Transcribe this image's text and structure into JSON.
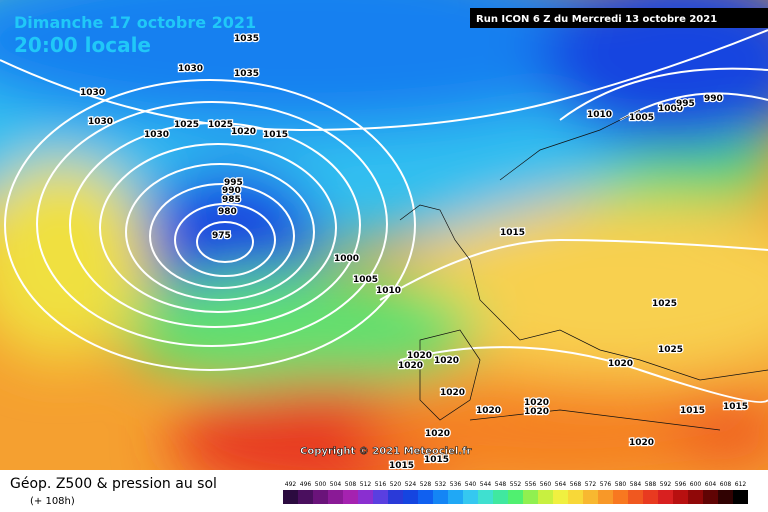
{
  "header": {
    "date": "Dimanche 17 octobre 2021",
    "time": "20:00 locale",
    "run": "Run ICON 6 Z du Mercredi 13 octobre 2021"
  },
  "isobar_labels": [
    "1035",
    "1030",
    "1035",
    "1030",
    "1030",
    "1030",
    "1025",
    "1025",
    "1020",
    "1015",
    "995",
    "990",
    "985",
    "980",
    "975",
    "1000",
    "1005",
    "1010",
    "1015",
    "1010",
    "1005",
    "1000",
    "995",
    "990",
    "1025",
    "1025",
    "1020",
    "1020",
    "1020",
    "1020",
    "1020",
    "1020",
    "1020",
    "1020",
    "1020",
    "1020",
    "1015",
    "1015",
    "1015",
    "1015"
  ],
  "copyright": "Copyright © 2021 Meteociel.fr",
  "footer": {
    "title": "Géop. Z500 & pression au sol",
    "lead": "(+ 108h)"
  },
  "scale": {
    "values": [
      492,
      496,
      500,
      504,
      508,
      512,
      516,
      520,
      524,
      528,
      532,
      536,
      540,
      544,
      548,
      552,
      556,
      560,
      564,
      568,
      572,
      576,
      580,
      584,
      588,
      592,
      596,
      600,
      604,
      608,
      612
    ],
    "colors": [
      "#2b0b3f",
      "#4a0f5e",
      "#6a137a",
      "#8a1a96",
      "#a522b0",
      "#8a2fd0",
      "#5a3fe0",
      "#2a3ad8",
      "#1545e0",
      "#1060f0",
      "#1485f5",
      "#20a8f5",
      "#35c8f0",
      "#3fe0d0",
      "#40e8a0",
      "#50f070",
      "#90f050",
      "#c8f040",
      "#f0f040",
      "#f8d838",
      "#f8b830",
      "#f89828",
      "#f87820",
      "#f05820",
      "#e83a20",
      "#d82020",
      "#b81010",
      "#900808",
      "#600404",
      "#300202",
      "#000000"
    ]
  }
}
